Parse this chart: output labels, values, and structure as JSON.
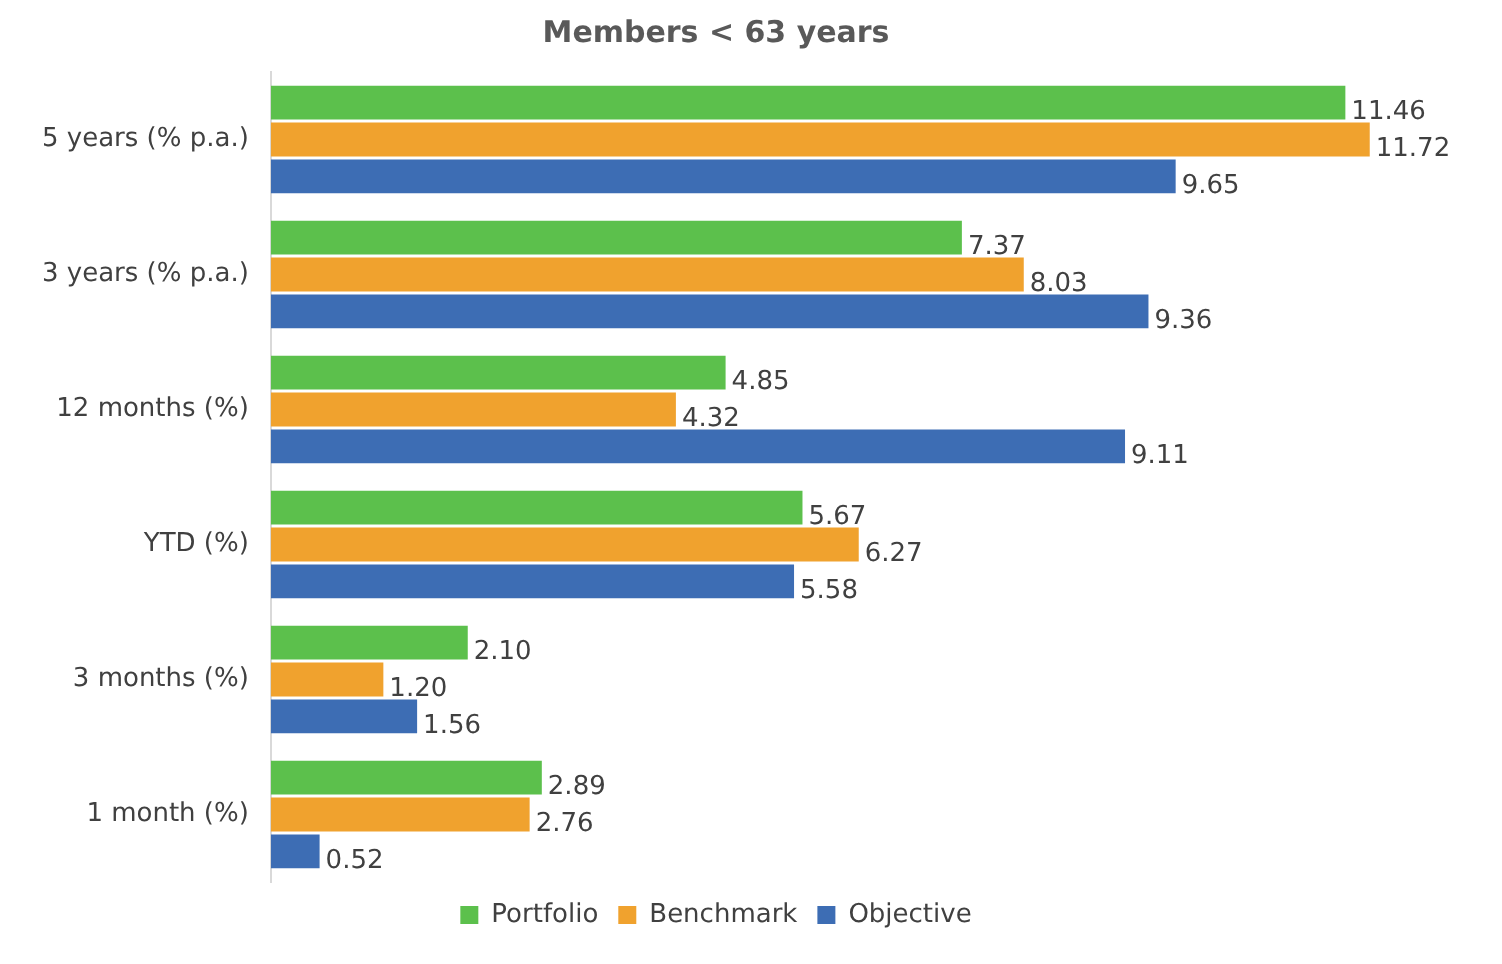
{
  "chart_data": {
    "type": "bar",
    "orientation": "horizontal",
    "title": "Members < 63 years",
    "categories": [
      "5 years (% p.a.)",
      "3 years (% p.a.)",
      "12 months (%)",
      "YTD (%)",
      "3 months (%)",
      "1 month (%)"
    ],
    "series": [
      {
        "name": "Portfolio",
        "color": "#5cc04c",
        "values": [
          11.46,
          7.37,
          4.85,
          5.67,
          2.1,
          2.89
        ],
        "value_labels": [
          "11.46",
          "7.37",
          "4.85",
          "5.67",
          "2.10",
          "2.89"
        ]
      },
      {
        "name": "Benchmark",
        "color": "#f0a22e",
        "values": [
          11.72,
          8.03,
          4.32,
          6.27,
          1.2,
          2.76
        ],
        "value_labels": [
          "11.72",
          "8.03",
          "4.32",
          "6.27",
          "1.20",
          "2.76"
        ]
      },
      {
        "name": "Objective",
        "color": "#3d6db4",
        "values": [
          9.65,
          9.36,
          9.11,
          5.58,
          1.56,
          0.52
        ],
        "value_labels": [
          "9.65",
          "9.36",
          "9.11",
          "5.58",
          "1.56",
          "0.52"
        ]
      }
    ],
    "legend": "bottom",
    "grid": false
  }
}
